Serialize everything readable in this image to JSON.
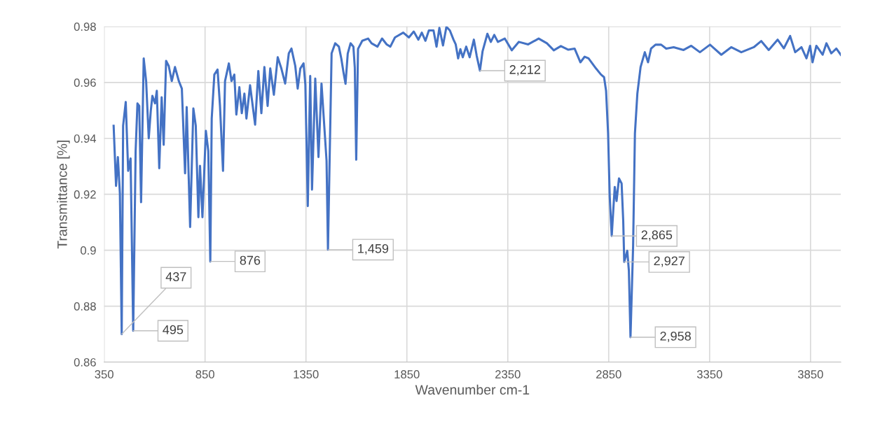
{
  "chart_data": {
    "type": "line",
    "xlabel": "Wavenumber cm-1",
    "ylabel": "Transmittance [%]",
    "xlim": [
      350,
      4000
    ],
    "xticks": [
      350,
      850,
      1350,
      1850,
      2350,
      2850,
      3350,
      3850
    ],
    "ylim": [
      0.86,
      0.98
    ],
    "yticks": [
      0.86,
      0.88,
      {
        "value": 0.9,
        "label": "0.9"
      },
      0.92,
      0.94,
      0.96,
      0.98
    ],
    "grid": true,
    "legend": false,
    "marker": "none",
    "line_style": "solid",
    "series": [
      {
        "color": "#4472c4",
        "x": [
          397,
          409,
          418,
          428,
          437,
          444,
          457,
          469,
          481,
          494,
          506,
          515,
          524,
          533,
          546,
          558,
          571,
          581,
          589,
          602,
          611,
          623,
          635,
          645,
          657,
          670,
          685,
          701,
          720,
          735,
          751,
          759,
          776,
          792,
          804,
          817,
          825,
          837,
          854,
          866,
          876,
          883,
          896,
          912,
          924,
          939,
          949,
          968,
          981,
          995,
          1005,
          1020,
          1032,
          1045,
          1055,
          1073,
          1098,
          1114,
          1129,
          1144,
          1160,
          1173,
          1191,
          1210,
          1228,
          1247,
          1265,
          1278,
          1297,
          1309,
          1322,
          1338,
          1347,
          1359,
          1371,
          1380,
          1396,
          1412,
          1427,
          1452,
          1459,
          1477,
          1495,
          1513,
          1525,
          1536,
          1546,
          1557,
          1571,
          1585,
          1592,
          1599,
          1608,
          1629,
          1658,
          1675,
          1704,
          1727,
          1750,
          1768,
          1791,
          1832,
          1860,
          1884,
          1907,
          1924,
          1942,
          1959,
          1982,
          1997,
          2011,
          2029,
          2046,
          2063,
          2081,
          2092,
          2104,
          2115,
          2127,
          2144,
          2161,
          2182,
          2196,
          2212,
          2225,
          2249,
          2266,
          2283,
          2301,
          2335,
          2370,
          2405,
          2451,
          2503,
          2544,
          2578,
          2613,
          2650,
          2681,
          2710,
          2731,
          2750,
          2787,
          2812,
          2827,
          2837,
          2847,
          2855,
          2865,
          2874,
          2880,
          2889,
          2901,
          2914,
          2922,
          2927,
          2942,
          2950,
          2958,
          2971,
          2980,
          2992,
          3008,
          3029,
          3045,
          3060,
          3082,
          3110,
          3135,
          3172,
          3221,
          3259,
          3302,
          3352,
          3408,
          3457,
          3507,
          3569,
          3606,
          3643,
          3687,
          3718,
          3749,
          3774,
          3805,
          3830,
          3848,
          3860,
          3879,
          3910,
          3929,
          3953,
          3978,
          4000
        ],
        "values": [
          0.9445,
          0.923,
          0.9333,
          0.9203,
          0.87,
          0.9445,
          0.953,
          0.9284,
          0.9328,
          0.8712,
          0.9355,
          0.9525,
          0.9516,
          0.9172,
          0.9686,
          0.9605,
          0.94,
          0.9498,
          0.9552,
          0.9525,
          0.957,
          0.9293,
          0.9547,
          0.9377,
          0.9677,
          0.9659,
          0.9605,
          0.9655,
          0.9605,
          0.9578,
          0.9275,
          0.9512,
          0.9083,
          0.9507,
          0.9445,
          0.9118,
          0.9302,
          0.9118,
          0.9427,
          0.9355,
          0.896,
          0.9471,
          0.9628,
          0.9646,
          0.9516,
          0.9284,
          0.9605,
          0.9668,
          0.9605,
          0.9628,
          0.9485,
          0.9583,
          0.949,
          0.956,
          0.9471,
          0.959,
          0.9449,
          0.9641,
          0.949,
          0.9655,
          0.9516,
          0.965,
          0.9556,
          0.969,
          0.965,
          0.9596,
          0.9704,
          0.9721,
          0.9659,
          0.9578,
          0.965,
          0.9668,
          0.9592,
          0.9158,
          0.9623,
          0.9217,
          0.9614,
          0.9333,
          0.9596,
          0.932,
          0.9002,
          0.9704,
          0.974,
          0.9728,
          0.9686,
          0.9636,
          0.9595,
          0.9703,
          0.974,
          0.9728,
          0.9653,
          0.9324,
          0.972,
          0.9749,
          0.9757,
          0.974,
          0.9728,
          0.9757,
          0.9736,
          0.9728,
          0.9761,
          0.9778,
          0.9761,
          0.9782,
          0.9753,
          0.9778,
          0.9749,
          0.9786,
          0.9786,
          0.9728,
          0.9795,
          0.9732,
          0.9799,
          0.9786,
          0.9753,
          0.9736,
          0.9686,
          0.9719,
          0.969,
          0.9728,
          0.969,
          0.9753,
          0.9695,
          0.9642,
          0.9711,
          0.9774,
          0.9745,
          0.977,
          0.9745,
          0.9757,
          0.9715,
          0.9745,
          0.9736,
          0.9757,
          0.974,
          0.9715,
          0.973,
          0.9717,
          0.9721,
          0.9672,
          0.9692,
          0.9686,
          0.965,
          0.9628,
          0.9619,
          0.957,
          0.9418,
          0.9194,
          0.9051,
          0.9158,
          0.9226,
          0.9176,
          0.9257,
          0.9239,
          0.9105,
          0.8958,
          0.8998,
          0.8927,
          0.8689,
          0.9016,
          0.9418,
          0.956,
          0.9655,
          0.9708,
          0.9672,
          0.9721,
          0.9735,
          0.9735,
          0.9721,
          0.9726,
          0.9716,
          0.9731,
          0.9708,
          0.9735,
          0.9699,
          0.9726,
          0.9708,
          0.9726,
          0.9748,
          0.9716,
          0.9753,
          0.9722,
          0.9766,
          0.9708,
          0.9726,
          0.9686,
          0.9731,
          0.9672,
          0.9731,
          0.9699,
          0.974,
          0.9704,
          0.9721,
          0.9699
        ]
      }
    ],
    "annotations": [
      {
        "text": "437",
        "x": 437,
        "y": 0.87
      },
      {
        "text": "495",
        "x": 494,
        "y": 0.8712
      },
      {
        "text": "876",
        "x": 876,
        "y": 0.896
      },
      {
        "text": "1,459",
        "x": 1459,
        "y": 0.9002
      },
      {
        "text": "2,212",
        "x": 2212,
        "y": 0.9642
      },
      {
        "text": "2,865",
        "x": 2865,
        "y": 0.9051
      },
      {
        "text": "2,927",
        "x": 2927,
        "y": 0.8958
      },
      {
        "text": "2,958",
        "x": 2958,
        "y": 0.8689
      }
    ]
  }
}
